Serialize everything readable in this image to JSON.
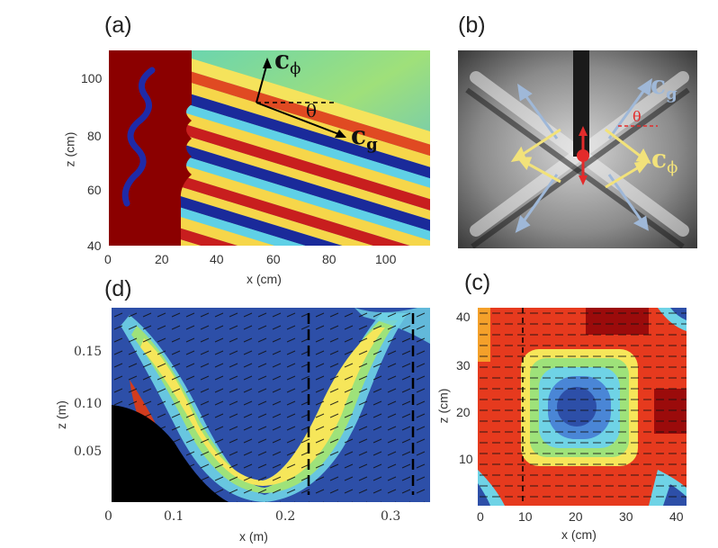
{
  "panels": {
    "a": {
      "label": "(a)",
      "xlabel": "x (cm)",
      "ylabel": "z (cm)",
      "xticks": [
        "0",
        "20",
        "40",
        "60",
        "80",
        "100"
      ],
      "yticks": [
        "40",
        "60",
        "80",
        "100"
      ],
      "annotations": {
        "cphi": "c",
        "cphi_sub": "ϕ",
        "cg": "c",
        "cg_sub": "g",
        "theta": "θ"
      }
    },
    "b": {
      "label": "(b)",
      "annotations": {
        "cg": "c",
        "cg_sub": "g",
        "cphi": "c",
        "cphi_sub": "ϕ",
        "theta": "θ"
      }
    },
    "d": {
      "label": "(d)",
      "xlabel": "x (m)",
      "ylabel": "z (m)",
      "xticks": [
        "0",
        "0.1",
        "0.2",
        "0.3"
      ],
      "yticks": [
        "0.05",
        "0.10",
        "0.15"
      ]
    },
    "c": {
      "label": "(c)",
      "xlabel": "x (cm)",
      "ylabel": "z (cm)",
      "xticks": [
        "0",
        "10",
        "20",
        "30",
        "40"
      ],
      "yticks": [
        "10",
        "20",
        "30",
        "40"
      ]
    }
  },
  "colors": {
    "hot": "#8b0000",
    "wave_red": "#c81e1e",
    "wave_blue": "#1a2a9a",
    "cyan": "#6fd3e6",
    "yellow": "#f6e65a",
    "arrow_yellow": "#f2e27a",
    "arrow_blue": "#9fb8d8",
    "marker_red": "#e32b2b"
  }
}
